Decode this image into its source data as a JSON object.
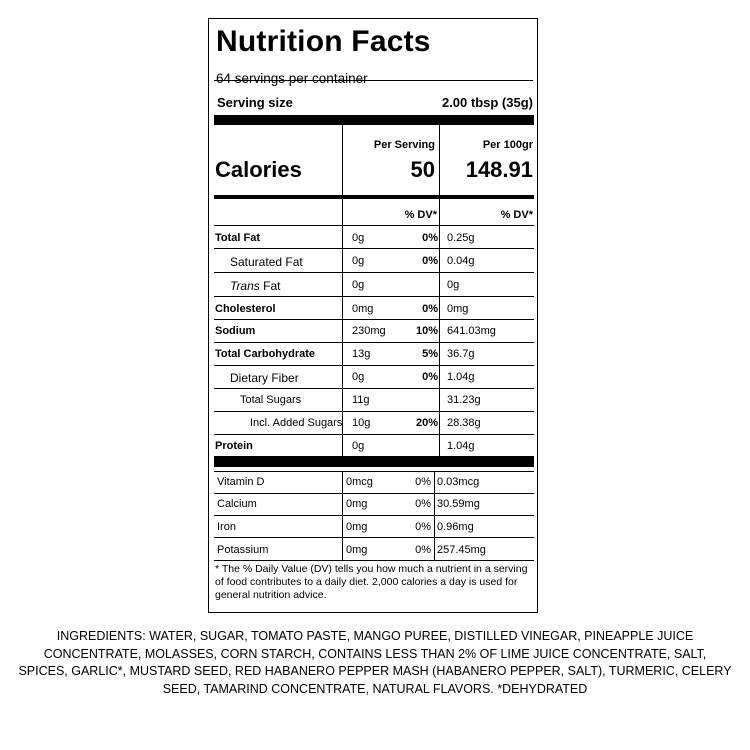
{
  "label": {
    "title": "Nutrition Facts",
    "servings_per_container": "64 servings per container",
    "serving_size_label": "Serving size",
    "serving_size_value": "2.00 tbsp (35g)",
    "header_per_serving": "Per Serving",
    "header_per_100": "Per 100gr",
    "calories_label": "Calories",
    "calories_per_serving": "50",
    "calories_per_100": "148.91",
    "dv_header_1": "% DV*",
    "dv_header_2": "% DV*",
    "nutrients": [
      {
        "name": "Total Fat",
        "amount": "0g",
        "dv": "0%",
        "per100": "0.25g"
      },
      {
        "name": "Saturated Fat",
        "amount": "0g",
        "dv": "0%",
        "per100": "0.04g"
      },
      {
        "name_italic": "Trans",
        "name_rest": " Fat",
        "amount": "0g",
        "dv": "",
        "per100": "0g"
      },
      {
        "name": "Cholesterol",
        "amount": "0mg",
        "dv": "0%",
        "per100": "0mg"
      },
      {
        "name": "Sodium",
        "amount": "230mg",
        "dv": "10%",
        "per100": "641.03mg"
      },
      {
        "name": "Total Carbohydrate",
        "amount": "13g",
        "dv": "5%",
        "per100": "36.7g"
      },
      {
        "name": "Dietary Fiber",
        "amount": "0g",
        "dv": "0%",
        "per100": "1.04g"
      },
      {
        "name": "Total Sugars",
        "amount": "11g",
        "dv": "",
        "per100": "31.23g"
      },
      {
        "name": "Incl. Added Sugars",
        "amount": "10g",
        "dv": "20%",
        "per100": "28.38g"
      },
      {
        "name": "Protein",
        "amount": "0g",
        "dv": "",
        "per100": "1.04g"
      }
    ],
    "vitamins": [
      {
        "name": "Vitamin D",
        "amount": "0mcg",
        "dv": "0%",
        "per100": "0.03mcg"
      },
      {
        "name": "Calcium",
        "amount": "0mg",
        "dv": "0%",
        "per100": "30.59mg"
      },
      {
        "name": "Iron",
        "amount": "0mg",
        "dv": "0%",
        "per100": "0.96mg"
      },
      {
        "name": "Potassium",
        "amount": "0mg",
        "dv": "0%",
        "per100": "257.45mg"
      }
    ],
    "footnote": "* The % Daily Value (DV) tells you how much a nutrient in a serving of food contributes to a daily diet. 2,000 calories a day is used for general nutrition advice."
  },
  "ingredients": "INGREDIENTS: WATER, SUGAR, TOMATO PASTE, MANGO PUREE, DISTILLED VINEGAR, PINEAPPLE JUICE CONCENTRATE, MOLASSES, CORN STARCH, CONTAINS LESS THAN 2% OF LIME JUICE CONCENTRATE, SALT, SPICES, GARLIC*, MUSTARD SEED, RED HABANERO PEPPER MASH (HABANERO PEPPER, SALT), TURMERIC, CELERY SEED, TAMARIND CONCENTRATE, NATURAL FLAVORS. *DEHYDRATED"
}
